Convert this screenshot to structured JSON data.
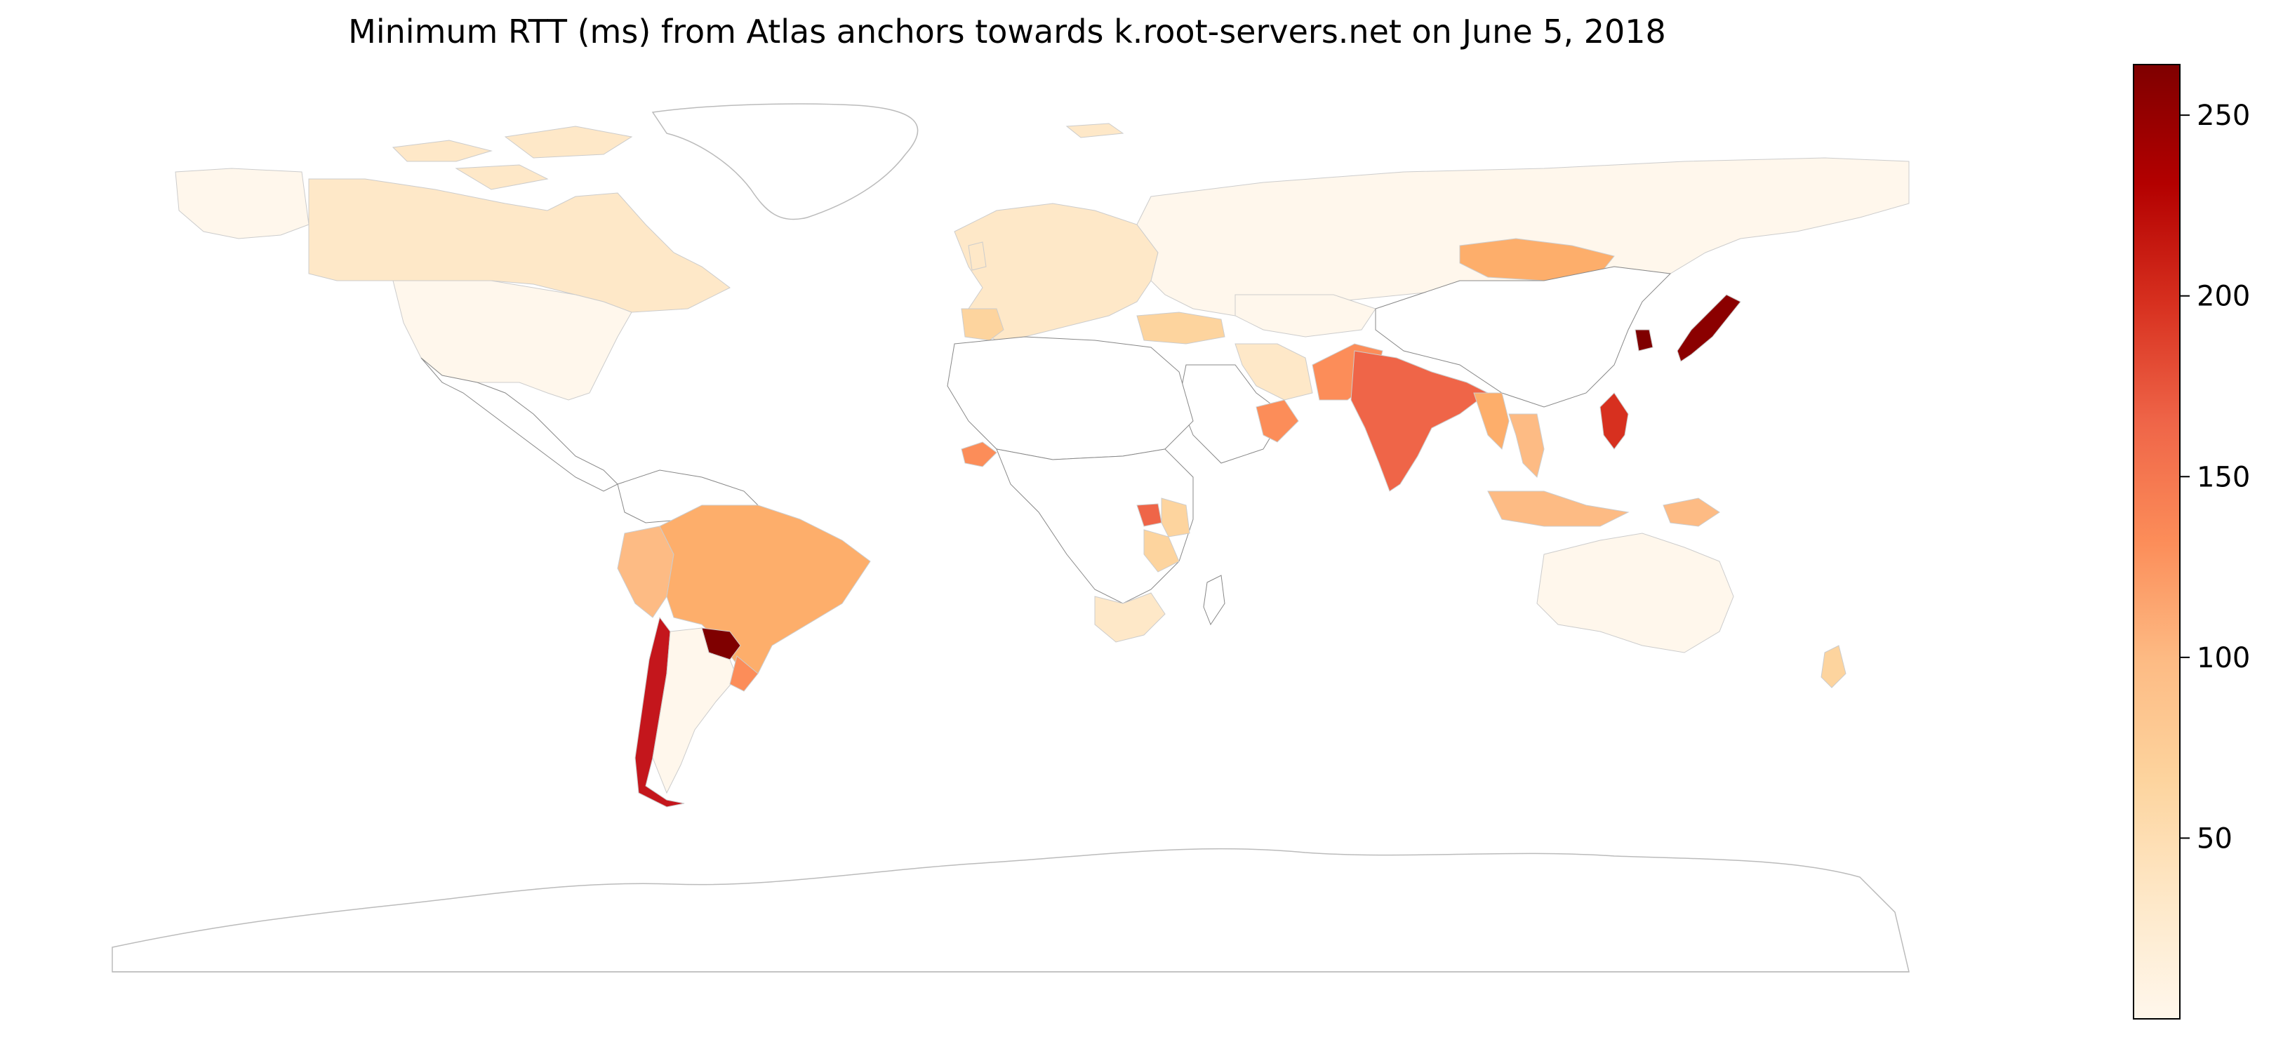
{
  "chart": {
    "title": "Minimum RTT (ms) from Atlas anchors towards k.root-servers.net on June 5, 2018"
  },
  "chart_data": {
    "type": "choropleth",
    "metric": "Minimum RTT (ms)",
    "colormap": "OrRd",
    "colormap_stops": [
      "#fff7ec",
      "#fee8c8",
      "#fdd49e",
      "#fdbb84",
      "#fc8d59",
      "#ef6548",
      "#d7301f",
      "#b30000",
      "#7f0000"
    ],
    "no_data_color": "#ffffff",
    "vmin": 0,
    "vmax": 264,
    "colorbar_ticks": [
      50,
      100,
      150,
      200,
      250
    ],
    "regions": [
      {
        "name": "Canada",
        "value": 28
      },
      {
        "name": "United States",
        "value": 8
      },
      {
        "name": "Brazil",
        "value": 118
      },
      {
        "name": "Peru",
        "value": 75
      },
      {
        "name": "Chile",
        "value": 205
      },
      {
        "name": "Paraguay",
        "value": 262
      },
      {
        "name": "Argentina",
        "value": 10
      },
      {
        "name": "Uruguay",
        "value": 135
      },
      {
        "name": "Europe",
        "value": 20
      },
      {
        "name": "Russia",
        "value": 8
      },
      {
        "name": "Turkey",
        "value": 45
      },
      {
        "name": "Iran",
        "value": 20
      },
      {
        "name": "Burkina Faso",
        "value": 135
      },
      {
        "name": "Uganda",
        "value": 170
      },
      {
        "name": "Kenya",
        "value": 60
      },
      {
        "name": "Tanzania",
        "value": 60
      },
      {
        "name": "South Africa",
        "value": 20
      },
      {
        "name": "Mongolia",
        "value": 120
      },
      {
        "name": "India",
        "value": 160
      },
      {
        "name": "Pakistan",
        "value": 150
      },
      {
        "name": "Oman",
        "value": 130
      },
      {
        "name": "Myanmar",
        "value": 115
      },
      {
        "name": "Thailand",
        "value": 115
      },
      {
        "name": "Indonesia",
        "value": 90
      },
      {
        "name": "Papua New Guinea",
        "value": 95
      },
      {
        "name": "Philippines",
        "value": 200
      },
      {
        "name": "Japan",
        "value": 250
      },
      {
        "name": "South Korea",
        "value": 262
      },
      {
        "name": "Australia",
        "value": 10
      },
      {
        "name": "New Zealand",
        "value": 70
      }
    ]
  }
}
